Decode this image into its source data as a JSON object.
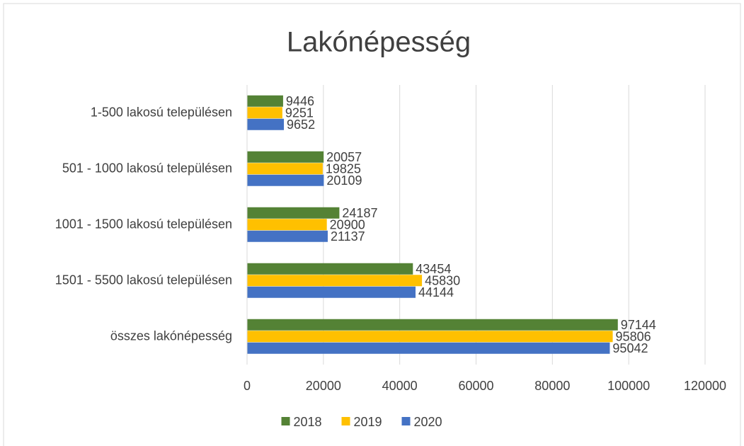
{
  "chart_data": {
    "type": "hbar",
    "title": "Lakónépesség",
    "categories": [
      "1-500 lakosú településen",
      "501 - 1000 lakosú településen",
      "1001 - 1500 lakosú településen",
      "1501 - 5500 lakosú településen",
      "összes lakónépesség"
    ],
    "series": [
      {
        "name": "2018",
        "color": "#548235",
        "values": [
          9446,
          20057,
          24187,
          43454,
          97144
        ]
      },
      {
        "name": "2019",
        "color": "#ffc000",
        "values": [
          9251,
          19825,
          20900,
          45830,
          95806
        ]
      },
      {
        "name": "2020",
        "color": "#4472c4",
        "values": [
          9652,
          20109,
          21137,
          44144,
          95042
        ]
      }
    ],
    "xlim": [
      0,
      120000
    ],
    "xticks": [
      0,
      20000,
      40000,
      60000,
      80000,
      100000,
      120000
    ],
    "grid": true,
    "legend": "bottom"
  }
}
